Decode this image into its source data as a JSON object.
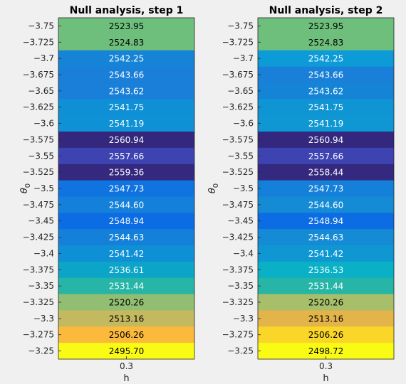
{
  "chart_data": [
    {
      "type": "heatmap",
      "title": "Null analysis, step 1",
      "xlabel": "h",
      "ylabel": "θ",
      "ylabel_subscript": "0",
      "x_categories": [
        "0.3"
      ],
      "y_categories": [
        "-3.75",
        "-3.725",
        "-3.7",
        "-3.675",
        "-3.65",
        "-3.625",
        "-3.6",
        "-3.575",
        "-3.55",
        "-3.525",
        "-3.5",
        "-3.475",
        "-3.45",
        "-3.425",
        "-3.4",
        "-3.375",
        "-3.35",
        "-3.325",
        "-3.3",
        "-3.275",
        "-3.25"
      ],
      "y_tick_labels": [
        "−3.75",
        "−3.725",
        "−3.7",
        "−3.675",
        "−3.65",
        "−3.625",
        "−3.6",
        "−3.575",
        "−3.55",
        "−3.525",
        "−3.5",
        "−3.475",
        "−3.45",
        "−3.425",
        "−3.4",
        "−3.375",
        "−3.35",
        "−3.325",
        "−3.3",
        "−3.275",
        "−3.25"
      ],
      "values": [
        2523.95,
        2524.83,
        2542.25,
        2543.66,
        2543.62,
        2541.75,
        2541.19,
        2560.94,
        2557.66,
        2559.36,
        2547.73,
        2544.6,
        2548.94,
        2544.63,
        2541.42,
        2536.61,
        2531.44,
        2520.26,
        2513.16,
        2506.26,
        2495.7
      ],
      "value_labels": [
        "2523.95",
        "2524.83",
        "2542.25",
        "2543.66",
        "2543.62",
        "2541.75",
        "2541.19",
        "2560.94",
        "2557.66",
        "2559.36",
        "2547.73",
        "2544.60",
        "2548.94",
        "2544.63",
        "2541.42",
        "2536.61",
        "2531.44",
        "2520.26",
        "2513.16",
        "2506.26",
        "2495.70"
      ],
      "colors": [
        "#6ebf7c",
        "#6ebf7c",
        "#1584d6",
        "#1a7fd9",
        "#1a7fd9",
        "#0f8fd5",
        "#0f91d5",
        "#33287d",
        "#3d44b2",
        "#34287f",
        "#0f73e0",
        "#1480d9",
        "#0c6ce3",
        "#1480d9",
        "#0f8fd5",
        "#0ca5c8",
        "#26b5a6",
        "#91be72",
        "#c3b95e",
        "#fcba3c",
        "#f9fb14"
      ],
      "text_colors": [
        "#000000",
        "#000000",
        "#ffffff",
        "#ffffff",
        "#ffffff",
        "#ffffff",
        "#ffffff",
        "#ffffff",
        "#ffffff",
        "#ffffff",
        "#ffffff",
        "#ffffff",
        "#ffffff",
        "#ffffff",
        "#ffffff",
        "#ffffff",
        "#ffffff",
        "#000000",
        "#000000",
        "#000000",
        "#000000"
      ],
      "colormap": "parula",
      "grid": false
    },
    {
      "type": "heatmap",
      "title": "Null analysis, step 2",
      "xlabel": "h",
      "ylabel": "θ",
      "ylabel_subscript": "0",
      "x_categories": [
        "0.3"
      ],
      "y_categories": [
        "-3.75",
        "-3.725",
        "-3.7",
        "-3.675",
        "-3.65",
        "-3.625",
        "-3.6",
        "-3.575",
        "-3.55",
        "-3.525",
        "-3.5",
        "-3.475",
        "-3.45",
        "-3.425",
        "-3.4",
        "-3.375",
        "-3.35",
        "-3.325",
        "-3.3",
        "-3.275",
        "-3.25"
      ],
      "y_tick_labels": [
        "−3.75",
        "−3.725",
        "−3.7",
        "−3.675",
        "−3.65",
        "−3.625",
        "−3.6",
        "−3.575",
        "−3.55",
        "−3.525",
        "−3.5",
        "−3.475",
        "−3.45",
        "−3.425",
        "−3.4",
        "−3.375",
        "−3.35",
        "−3.325",
        "−3.3",
        "−3.275",
        "−3.25"
      ],
      "values": [
        2523.95,
        2524.83,
        2542.25,
        2543.66,
        2543.62,
        2541.75,
        2541.19,
        2560.94,
        2557.66,
        2558.44,
        2547.73,
        2544.6,
        2548.94,
        2544.63,
        2541.42,
        2536.53,
        2531.44,
        2520.26,
        2513.16,
        2506.26,
        2498.72
      ],
      "value_labels": [
        "2523.95",
        "2524.83",
        "2542.25",
        "2543.66",
        "2543.62",
        "2541.75",
        "2541.19",
        "2560.94",
        "2557.66",
        "2558.44",
        "2547.73",
        "2544.60",
        "2548.94",
        "2544.63",
        "2541.42",
        "2536.53",
        "2531.44",
        "2520.26",
        "2513.16",
        "2506.26",
        "2498.72"
      ],
      "colors": [
        "#6ebf7c",
        "#6ebf7c",
        "#0d9bd8",
        "#1a7fd9",
        "#1584d6",
        "#0f95d3",
        "#0f97d3",
        "#33287d",
        "#3d44b2",
        "#34287f",
        "#1480d9",
        "#158bd6",
        "#0c6ce3",
        "#158bd6",
        "#0f97d3",
        "#0ab1c6",
        "#26b5a6",
        "#a7bf6a",
        "#e3b44a",
        "#f9d628",
        "#f9fb14"
      ],
      "text_colors": [
        "#000000",
        "#000000",
        "#ffffff",
        "#ffffff",
        "#ffffff",
        "#ffffff",
        "#ffffff",
        "#ffffff",
        "#ffffff",
        "#ffffff",
        "#ffffff",
        "#ffffff",
        "#ffffff",
        "#ffffff",
        "#ffffff",
        "#ffffff",
        "#ffffff",
        "#000000",
        "#000000",
        "#000000",
        "#000000"
      ],
      "colormap": "parula",
      "grid": false
    }
  ]
}
